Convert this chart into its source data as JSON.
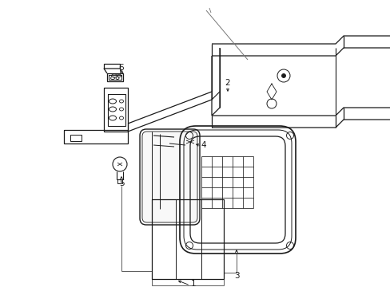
{
  "bg_color": "#ffffff",
  "lc": "#1a1a1a",
  "figsize": [
    4.89,
    3.6
  ],
  "dpi": 100,
  "xlim": [
    0,
    489
  ],
  "ylim": [
    360,
    0
  ]
}
